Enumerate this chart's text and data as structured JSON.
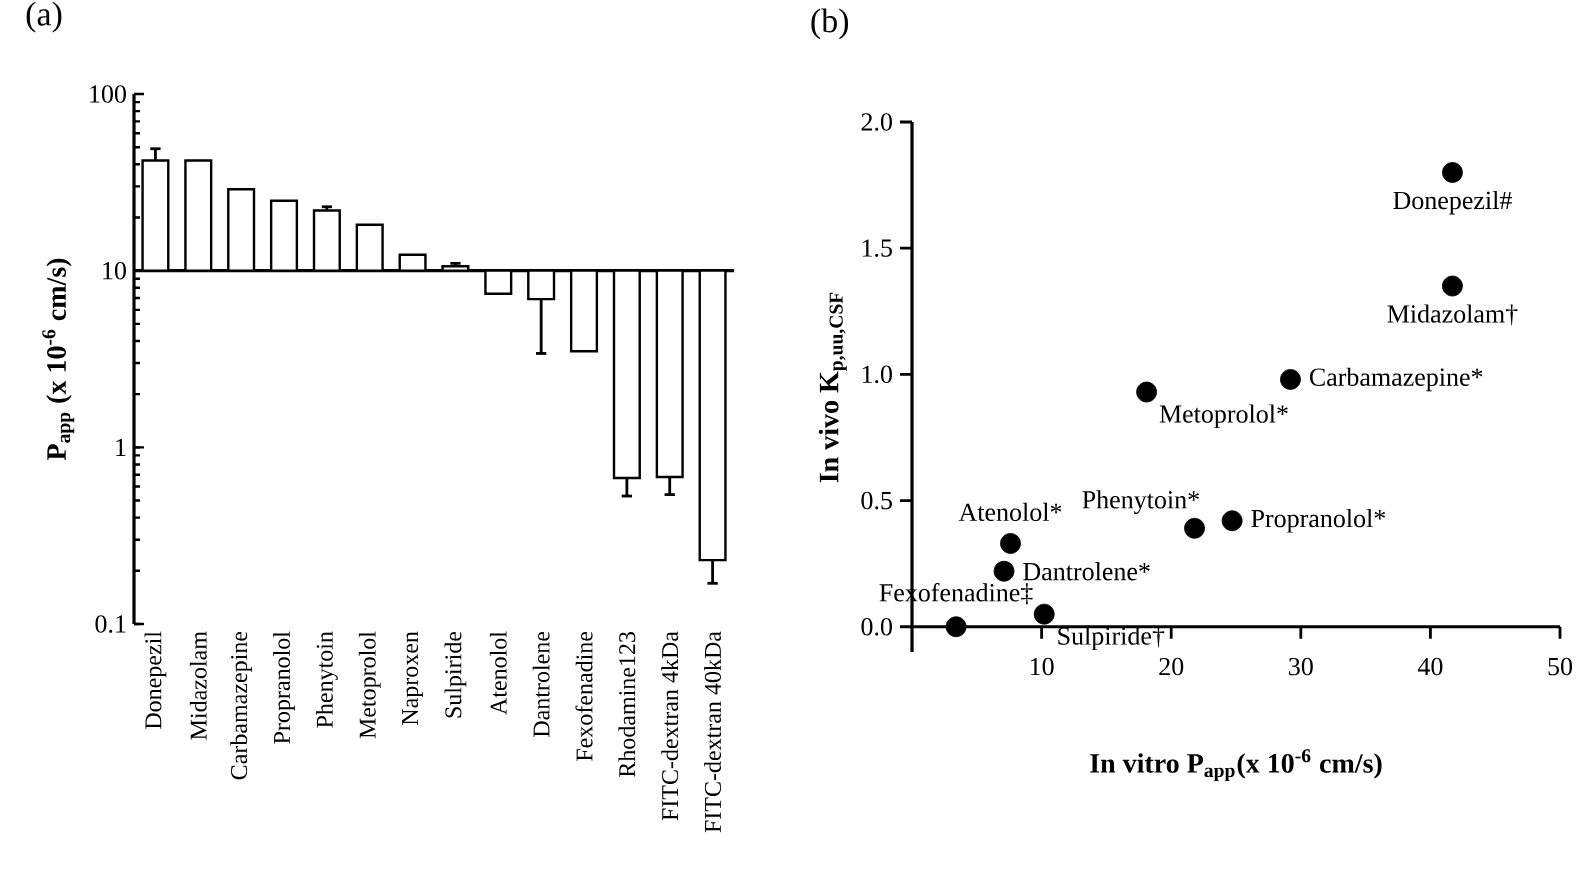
{
  "chart_data": [
    {
      "type": "bar",
      "title": "(a)",
      "ylabel": "P$_{app}$ (x 10$^{-6}$ cm/s)",
      "log": "y",
      "color": "#ffffff",
      "categories": [
        "Donepezil",
        "Midazolam",
        "Carbamazepine",
        "Propranolol",
        "Phenytoin",
        "Metoprolol",
        "Naproxen",
        "Sulpiride",
        "Atenolol",
        "Dantrolene",
        "Fexofenadine",
        "Rhodamine123",
        "FITC-dextran 4kDa",
        "FITC-dextran 40kDa"
      ],
      "base": [
        10,
        10,
        10,
        10,
        10,
        10,
        10,
        10,
        10,
        10,
        10,
        10,
        10,
        10
      ],
      "values": [
        32,
        32,
        18.9,
        14.9,
        11.9,
        8.2,
        2.3,
        0.6,
        -2.6,
        -3.1,
        -6.5,
        -9.33,
        -9.32,
        -9.77
      ],
      "errors": [
        [
          42,
          49
        ],
        null,
        null,
        null,
        [
          21.9,
          23
        ],
        null,
        null,
        [
          10.6,
          11
        ],
        null,
        [
          3.4,
          6.9
        ],
        null,
        [
          0.53,
          0.67
        ],
        [
          0.54,
          0.68
        ],
        [
          0.17,
          0.23
        ]
      ],
      "ylim": [
        0.1,
        100
      ],
      "yticks": [
        0.1,
        1,
        10,
        100
      ]
    },
    {
      "type": "scatter",
      "title": "(b)",
      "xlabel": "In vitro P$_{app}$(x 10$^{-6}$ cm/s)",
      "ylabel": "In vivo K$_{p,uu,CSF}$",
      "color": "#000000",
      "x": [
        41.7,
        41.7,
        29.2,
        18.1,
        21.8,
        24.7,
        7.6,
        7.1,
        3.4,
        10.2
      ],
      "values": [
        1.8,
        1.35,
        0.98,
        0.93,
        0.39,
        0.42,
        0.33,
        0.22,
        0.0,
        0.05
      ],
      "xlim": [
        0,
        50
      ],
      "xticks": [
        10,
        20,
        30,
        40,
        50
      ],
      "ylim": [
        -0.1,
        2.0
      ],
      "yticks": [
        {
          "value": 0,
          "label": "0.0"
        },
        {
          "value": 0.5,
          "label": "0.5"
        },
        {
          "value": 1,
          "label": "1.0"
        },
        {
          "value": 1.5,
          "label": "1.5"
        },
        {
          "value": 2,
          "label": "2.0"
        }
      ],
      "annotations": [
        {
          "text": "Donepezil#",
          "x": 41.7,
          "y": 1.8
        },
        {
          "text": "Midazolam†",
          "x": 41.7,
          "y": 1.35
        },
        {
          "text": "Carbamazepine*",
          "x": 29.2,
          "y": 0.98
        },
        {
          "text": "Metoprolol*",
          "x": 18.1,
          "y": 0.93
        },
        {
          "text": "Phenytoin*",
          "x": 21.8,
          "y": 0.39
        },
        {
          "text": "Propranolol*",
          "x": 24.7,
          "y": 0.42
        },
        {
          "text": "Atenolol*",
          "x": 7.6,
          "y": 0.33
        },
        {
          "text": "Dantrolene*",
          "x": 7.1,
          "y": 0.22
        },
        {
          "text": "Fexofenadine‡",
          "x": 3.4,
          "y": 0.0
        },
        {
          "text": "Sulpiride†",
          "x": 10.2,
          "y": 0.05
        }
      ]
    }
  ]
}
